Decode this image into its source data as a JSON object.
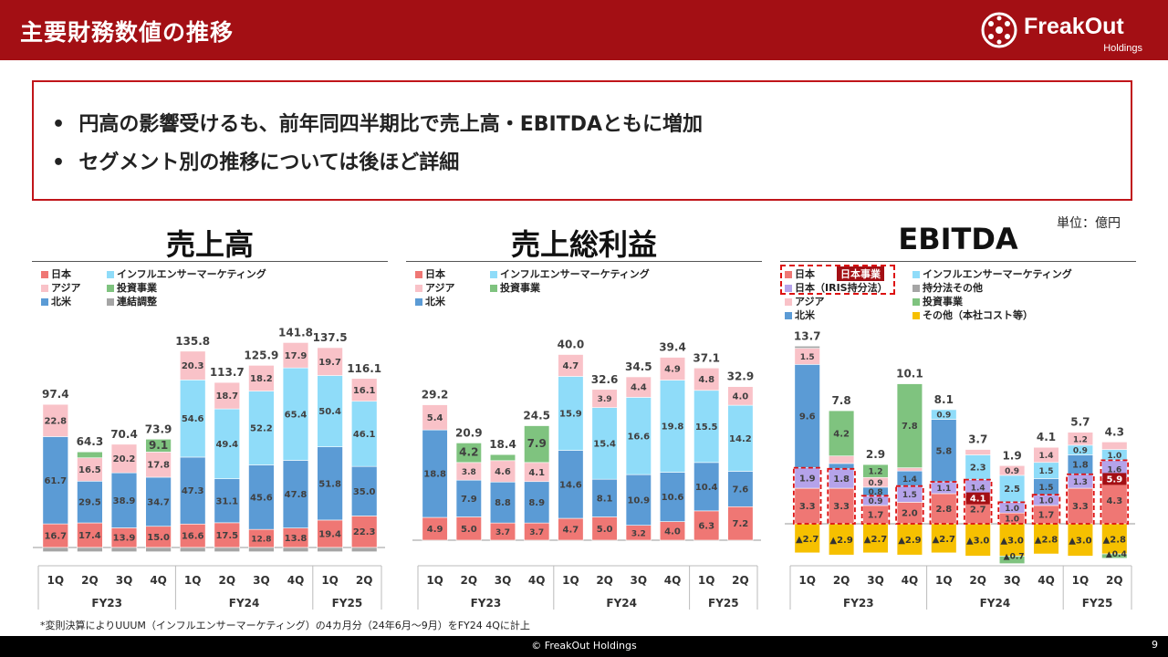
{
  "header": {
    "title": "主要財務数値の推移"
  },
  "logo": {
    "name": "FreakOut",
    "sub": "Holdings"
  },
  "summary": {
    "bullets": [
      "円高の影響受けるも、前年同四半期比で売上高・EBITDAともに増加",
      "セグメント別の推移については後ほど詳細"
    ]
  },
  "unit_label": "単位：億円",
  "colors": {
    "japan": "#ef7774",
    "asia": "#f9c2c8",
    "na": "#5b9bd5",
    "influencer": "#8fdcf9",
    "invest": "#7fc37f",
    "consol": "#a5a5a5",
    "iris": "#b5a3ea",
    "equity": "#a5a5a5",
    "other": "#f6c000",
    "accent": "#a30f14"
  },
  "x_axis": {
    "quarters": [
      "1Q",
      "2Q",
      "3Q",
      "4Q",
      "1Q",
      "2Q",
      "3Q",
      "4Q",
      "1Q",
      "2Q"
    ],
    "years": [
      {
        "label": "FY23",
        "from": 0,
        "to": 3
      },
      {
        "label": "FY24",
        "from": 4,
        "to": 7
      },
      {
        "label": "FY25",
        "from": 8,
        "to": 9
      }
    ]
  },
  "charts": [
    {
      "title": "売上高",
      "legend": [
        {
          "label": "日本",
          "color": "japan"
        },
        {
          "label": "インフルエンサーマーケティング",
          "color": "influencer"
        },
        {
          "label": "アジア",
          "color": "asia"
        },
        {
          "label": "投資事業",
          "color": "invest"
        },
        {
          "label": "北米",
          "color": "na"
        },
        {
          "label": "連結調整",
          "color": "consol"
        }
      ]
    },
    {
      "title": "売上総利益",
      "legend": [
        {
          "label": "日本",
          "color": "japan"
        },
        {
          "label": "インフルエンサーマーケティング",
          "color": "influencer"
        },
        {
          "label": "アジア",
          "color": "asia"
        },
        {
          "label": "投資事業",
          "color": "invest"
        },
        {
          "label": "北米",
          "color": "na"
        }
      ]
    },
    {
      "title": "EBITDA",
      "legend": [
        {
          "label": "日本",
          "color": "japan"
        },
        {
          "label": "インフルエンサーマーケティング",
          "color": "influencer"
        },
        {
          "label": "日本（IRIS持分法）",
          "color": "iris"
        },
        {
          "label": "持分法その他",
          "color": "equity"
        },
        {
          "label": "アジア",
          "color": "asia"
        },
        {
          "label": "投資事業",
          "color": "invest"
        },
        {
          "label": "北米",
          "color": "na"
        },
        {
          "label": "その他（本社コスト等）",
          "color": "other"
        }
      ],
      "highlight_label": "日本事業"
    }
  ],
  "chart_data": [
    {
      "type": "bar",
      "title": "売上高",
      "stacked": true,
      "categories": [
        "FY23 1Q",
        "FY23 2Q",
        "FY23 3Q",
        "FY23 4Q",
        "FY24 1Q",
        "FY24 2Q",
        "FY24 3Q",
        "FY24 4Q",
        "FY25 1Q",
        "FY25 2Q"
      ],
      "totals": [
        "97.4",
        "64.3",
        "70.4",
        "73.9",
        "135.8",
        "113.7",
        "125.9",
        "141.8",
        "137.5",
        "116.1"
      ],
      "series": [
        {
          "name": "日本",
          "color": "japan",
          "values": [
            16.7,
            17.4,
            13.9,
            15.0,
            16.6,
            17.5,
            12.8,
            13.8,
            19.4,
            22.3
          ]
        },
        {
          "name": "北米",
          "color": "na",
          "values": [
            61.7,
            29.5,
            38.9,
            34.7,
            47.3,
            31.1,
            45.6,
            47.8,
            51.8,
            35.0
          ]
        },
        {
          "name": "インフルエンサーマーケティング",
          "color": "influencer",
          "values": [
            0,
            0,
            0,
            0,
            54.6,
            49.4,
            52.2,
            65.4,
            50.4,
            46.1
          ]
        },
        {
          "name": "アジア",
          "color": "asia",
          "values": [
            22.8,
            16.5,
            20.2,
            17.8,
            20.3,
            18.7,
            18.2,
            17.9,
            19.7,
            16.1
          ]
        },
        {
          "name": "投資事業",
          "color": "invest",
          "values": [
            0,
            4.2,
            0,
            9.1,
            0,
            0,
            0,
            0,
            0,
            0
          ]
        },
        {
          "name": "連結調整",
          "color": "consol",
          "values": [
            -3.0,
            -3.0,
            -3.0,
            -3.0,
            -3.0,
            -3.0,
            -3.0,
            -3.0,
            -3.0,
            -3.0
          ]
        }
      ]
    },
    {
      "type": "bar",
      "title": "売上総利益",
      "stacked": true,
      "categories": [
        "FY23 1Q",
        "FY23 2Q",
        "FY23 3Q",
        "FY23 4Q",
        "FY24 1Q",
        "FY24 2Q",
        "FY24 3Q",
        "FY24 4Q",
        "FY25 1Q",
        "FY25 2Q"
      ],
      "totals": [
        "29.2",
        "20.9",
        "18.4",
        "24.5",
        "40.0",
        "32.6",
        "34.5",
        "39.4",
        "37.1",
        "32.9"
      ],
      "series": [
        {
          "name": "日本",
          "color": "japan",
          "values": [
            4.9,
            5.0,
            3.7,
            3.7,
            4.7,
            5.0,
            3.2,
            4.0,
            6.3,
            7.2
          ]
        },
        {
          "name": "北米",
          "color": "na",
          "values": [
            18.8,
            7.9,
            8.8,
            8.9,
            14.6,
            8.1,
            10.9,
            10.6,
            10.4,
            7.6
          ]
        },
        {
          "name": "インフルエンサーマーケティング",
          "color": "influencer",
          "values": [
            0,
            0,
            0,
            0,
            15.9,
            15.4,
            16.6,
            19.8,
            15.5,
            14.2
          ]
        },
        {
          "name": "アジア",
          "color": "asia",
          "values": [
            5.4,
            3.8,
            4.6,
            4.1,
            4.7,
            3.9,
            4.4,
            4.9,
            4.8,
            4.0
          ]
        },
        {
          "name": "投資事業",
          "color": "invest",
          "values": [
            0,
            4.2,
            1.3,
            7.9,
            0,
            0,
            0,
            0,
            0,
            0
          ]
        }
      ]
    },
    {
      "type": "bar",
      "title": "EBITDA",
      "stacked": true,
      "categories": [
        "FY23 1Q",
        "FY23 2Q",
        "FY23 3Q",
        "FY23 4Q",
        "FY24 1Q",
        "FY24 2Q",
        "FY24 3Q",
        "FY24 4Q",
        "FY25 1Q",
        "FY25 2Q"
      ],
      "totals": [
        "13.7",
        "7.8",
        "2.9",
        "10.1",
        "8.1",
        "3.7",
        "1.9",
        "4.1",
        "5.7",
        "4.3"
      ],
      "japan_business_totals": [
        "",
        "",
        "",
        "",
        "",
        "4.1",
        "",
        "",
        "",
        "5.9"
      ],
      "series": [
        {
          "name": "日本",
          "color": "japan",
          "values": [
            3.3,
            3.3,
            1.7,
            2.0,
            2.8,
            2.7,
            1.0,
            1.7,
            3.3,
            4.3
          ]
        },
        {
          "name": "日本（IRIS持分法）",
          "color": "iris",
          "values": [
            1.9,
            1.8,
            0.9,
            1.5,
            1.1,
            1.4,
            1.0,
            1.0,
            1.3,
            1.6
          ]
        },
        {
          "name": "北米",
          "color": "na",
          "values": [
            9.6,
            0.5,
            0.8,
            1.4,
            5.8,
            0,
            0,
            1.5,
            1.8,
            0
          ]
        },
        {
          "name": "インフルエンサーマーケティング",
          "color": "influencer",
          "values": [
            0,
            0,
            0,
            0,
            0.9,
            2.3,
            2.5,
            1.5,
            0.9,
            1.0
          ]
        },
        {
          "name": "アジア",
          "color": "asia",
          "values": [
            1.5,
            0.7,
            0.9,
            0.3,
            0,
            0.5,
            0.9,
            1.4,
            1.2,
            0.7
          ]
        },
        {
          "name": "投資事業",
          "color": "invest",
          "values": [
            0,
            4.2,
            1.2,
            7.8,
            0,
            0,
            0,
            0,
            0,
            0
          ]
        },
        {
          "name": "持分法その他",
          "color": "equity",
          "values": [
            0.2,
            0,
            0,
            0,
            0,
            0,
            0,
            0,
            0,
            0
          ]
        },
        {
          "name": "その他（本社コスト等）",
          "color": "other",
          "values": [
            -2.7,
            -2.9,
            -2.7,
            -2.9,
            -2.7,
            -3.0,
            -3.0,
            -2.8,
            -3.0,
            -2.8
          ]
        },
        {
          "name": "日本（マイナス）",
          "color": "invest",
          "values": [
            0,
            0,
            0,
            0,
            0,
            0,
            -0.7,
            0,
            0,
            -0.4
          ]
        }
      ]
    }
  ],
  "footnote": "*変則決算によりUUUM（インフルエンサーマーケティング）の4カ月分（24年6月〜9月）をFY24 4Qに計上",
  "footer": {
    "copyright": "© FreakOut Holdings",
    "page": "9"
  }
}
